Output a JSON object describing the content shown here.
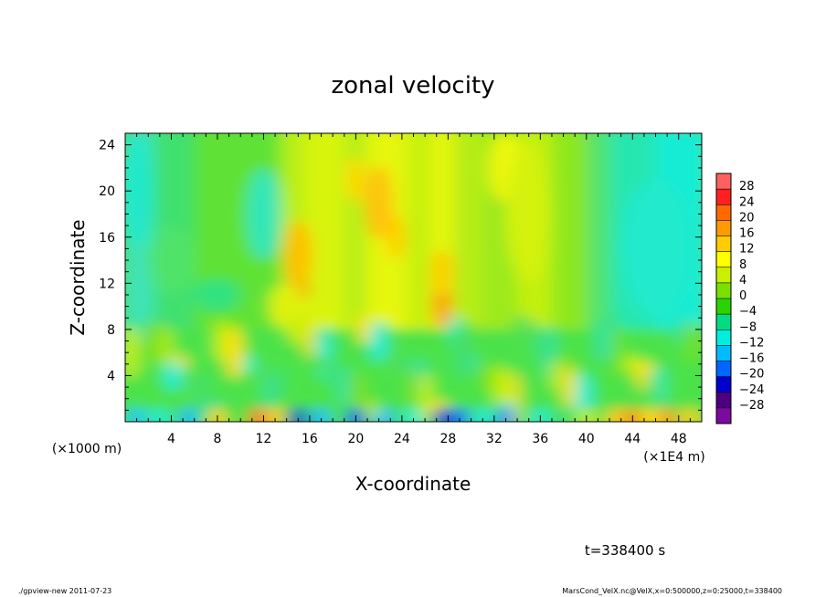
{
  "chart_data": {
    "type": "heatmap",
    "title": "zonal velocity",
    "xlabel": "X-coordinate",
    "ylabel": "Z-coordinate",
    "x_unit": "(×1E4 m)",
    "y_unit": "(×1000 m)",
    "xlim": [
      0,
      50
    ],
    "ylim": [
      0,
      25
    ],
    "x_ticks": [
      4,
      8,
      12,
      16,
      20,
      24,
      28,
      32,
      36,
      40,
      44,
      48
    ],
    "y_ticks": [
      4,
      8,
      12,
      16,
      20,
      24
    ],
    "colorbar": {
      "levels": [
        28,
        24,
        20,
        16,
        12,
        8,
        4,
        0,
        -4,
        -8,
        -12,
        -16,
        -20,
        -24,
        -28
      ],
      "colors": [
        "#ff6060",
        "#ff2020",
        "#ff6a00",
        "#ff9a00",
        "#ffcc00",
        "#ffff00",
        "#c8f000",
        "#7ae000",
        "#2ad400",
        "#00dd80",
        "#00eedd",
        "#00bbff",
        "#0066ff",
        "#0000d0",
        "#4b0082",
        "#7a0aa0"
      ]
    },
    "features": [
      {
        "x": 15.0,
        "z": 12.5,
        "value": 18
      },
      {
        "x": 22.0,
        "z": 19.0,
        "value": 14
      },
      {
        "x": 27.5,
        "z": 10.5,
        "value": 14
      },
      {
        "x": 15.0,
        "z": 1.0,
        "value": -22
      },
      {
        "x": 20.0,
        "z": 0.8,
        "value": -18
      },
      {
        "x": 27.5,
        "z": 1.0,
        "value": -22
      },
      {
        "x": 11.5,
        "z": 0.8,
        "value": 18
      },
      {
        "x": 44.0,
        "z": 1.0,
        "value": 16
      }
    ]
  },
  "time_label": "t=338400 s",
  "footer_left": "./gpview-new   2011-07-23",
  "footer_right": "MarsCond_VelX.nc@VelX,x=0:500000,z=0:25000,t=338400"
}
